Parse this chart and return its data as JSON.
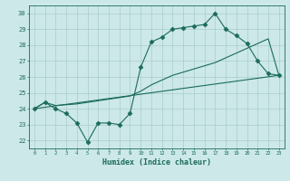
{
  "title": "",
  "xlabel": "Humidex (Indice chaleur)",
  "ylabel": "",
  "bg_color": "#cce8e8",
  "grid_color": "#aacccc",
  "line_color": "#1a6b5a",
  "xlim": [
    -0.5,
    23.5
  ],
  "ylim": [
    21.5,
    30.5
  ],
  "xticks": [
    0,
    1,
    2,
    3,
    4,
    5,
    6,
    7,
    8,
    9,
    10,
    11,
    12,
    13,
    14,
    15,
    16,
    17,
    18,
    19,
    20,
    21,
    22,
    23
  ],
  "yticks": [
    22,
    23,
    24,
    25,
    26,
    27,
    28,
    29,
    30
  ],
  "series": [
    {
      "x": [
        0,
        1,
        2,
        3,
        4,
        5,
        6,
        7,
        8,
        9,
        10,
        11,
        12,
        13,
        14,
        15,
        16,
        17,
        18,
        19,
        20,
        21,
        22,
        23
      ],
      "y": [
        24.0,
        24.4,
        24.0,
        23.7,
        23.1,
        21.9,
        23.1,
        23.1,
        23.0,
        23.7,
        26.6,
        28.2,
        28.5,
        29.0,
        29.1,
        29.2,
        29.3,
        30.0,
        29.0,
        28.6,
        28.1,
        27.0,
        26.2,
        26.1
      ],
      "marker": "D",
      "markersize": 2.5
    },
    {
      "x": [
        0,
        23
      ],
      "y": [
        24.0,
        26.1
      ],
      "marker": null,
      "markersize": 0
    },
    {
      "x": [
        0,
        1,
        2,
        3,
        4,
        5,
        6,
        7,
        8,
        9,
        10,
        11,
        12,
        13,
        14,
        15,
        16,
        17,
        18,
        19,
        20,
        21,
        22,
        23
      ],
      "y": [
        24.0,
        24.4,
        24.2,
        24.25,
        24.3,
        24.4,
        24.5,
        24.6,
        24.7,
        24.8,
        25.1,
        25.5,
        25.8,
        26.1,
        26.3,
        26.5,
        26.7,
        26.9,
        27.2,
        27.5,
        27.8,
        28.1,
        28.4,
        26.1
      ],
      "marker": null,
      "markersize": 0
    }
  ]
}
